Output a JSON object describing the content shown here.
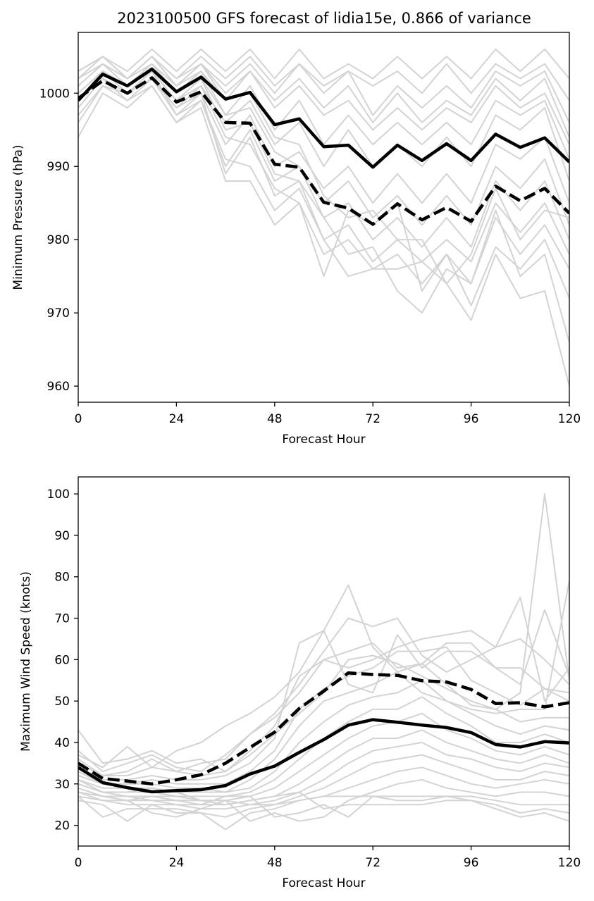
{
  "colors": {
    "member": "#d3d3d3",
    "highlight": "#000000",
    "axes": "#000000",
    "background": "#ffffff"
  },
  "chart_data": [
    {
      "type": "line",
      "title": "2023100500 GFS forecast of lidia15e, 0.866 of variance",
      "xlabel": "Forecast Hour",
      "ylabel": "Minimum Pressure (hPa)",
      "xlim": [
        0,
        120
      ],
      "ylim": [
        957.8,
        1008.3
      ],
      "x_ticks": [
        0,
        24,
        48,
        72,
        96,
        120
      ],
      "y_ticks": [
        960,
        970,
        980,
        990,
        1000
      ],
      "x": [
        0,
        6,
        12,
        18,
        24,
        30,
        36,
        42,
        48,
        54,
        60,
        66,
        72,
        78,
        84,
        90,
        96,
        102,
        108,
        114,
        120
      ],
      "grid": false,
      "legend": "none",
      "ensemble_members": [
        [
          1003,
          1005,
          1003,
          1006,
          1003,
          1006,
          1003,
          1006,
          1002,
          1006,
          1002,
          1004,
          1002,
          1005,
          1002,
          1005,
          1002,
          1006,
          1003,
          1006,
          1002
        ],
        [
          1002,
          1005,
          1002,
          1005,
          1002,
          1005,
          1002,
          1005,
          1001,
          1004,
          1001,
          1003,
          1001,
          1003,
          1000,
          1004,
          1000,
          1004,
          1002,
          1004,
          999
        ],
        [
          1001,
          1004,
          1002,
          1005,
          1001,
          1004,
          1001,
          1004,
          1000,
          1004,
          1000,
          1003,
          997,
          1001,
          998,
          1001,
          998,
          1003,
          1001,
          1003,
          996
        ],
        [
          1000,
          1003,
          1001,
          1004,
          1001,
          1004,
          1000,
          1003,
          999,
          1002,
          998,
          1001,
          996,
          1000,
          996,
          999,
          997,
          1002,
          999,
          1002,
          994
        ],
        [
          999,
          1003,
          1001,
          1003,
          1000,
          1003,
          999,
          1003,
          998,
          1001,
          997,
          999,
          995,
          998,
          995,
          998,
          996,
          1001,
          998,
          1000,
          993
        ],
        [
          998,
          1002,
          1000,
          1003,
          999,
          1002,
          997,
          1001,
          995,
          999,
          993,
          997,
          993,
          996,
          993,
          996,
          993,
          999,
          997,
          999,
          991
        ],
        [
          997,
          1001,
          1000,
          1002,
          998,
          1001,
          996,
          999,
          993,
          996,
          990,
          995,
          990,
          993,
          990,
          994,
          990,
          997,
          995,
          998,
          988
        ],
        [
          996,
          1001,
          999,
          1002,
          997,
          1000,
          993,
          997,
          990,
          992,
          987,
          990,
          985,
          989,
          985,
          989,
          985,
          993,
          991,
          994,
          985
        ],
        [
          994,
          1000,
          998,
          1001,
          996,
          999,
          990,
          995,
          988,
          990,
          985,
          988,
          983,
          986,
          982,
          986,
          982,
          990,
          987,
          991,
          982
        ],
        [
          999,
          1002,
          1000,
          1002,
          998,
          1000,
          989,
          994,
          986,
          988,
          983,
          985,
          980,
          983,
          979,
          983,
          979,
          988,
          984,
          988,
          980
        ],
        [
          1000,
          1003,
          1000,
          1003,
          997,
          999,
          991,
          990,
          984,
          987,
          980,
          982,
          977,
          980,
          977,
          980,
          977,
          985,
          981,
          985,
          978
        ],
        [
          998,
          1002,
          999,
          1001,
          996,
          998,
          988,
          988,
          982,
          985,
          978,
          980,
          976,
          978,
          974,
          978,
          974,
          983,
          978,
          982,
          976
        ],
        [
          999,
          1003,
          1001,
          1003,
          999,
          1001,
          994,
          993,
          987,
          985,
          975,
          984,
          982,
          985,
          973,
          978,
          971,
          979,
          976,
          980,
          972
        ],
        [
          1001,
          1004,
          1001,
          1004,
          1000,
          1002,
          995,
          996,
          989,
          988,
          980,
          975,
          976,
          976,
          977,
          974,
          969,
          978,
          972,
          973,
          960
        ],
        [
          1002,
          1004,
          1002,
          1004,
          1001,
          1003,
          997,
          998,
          992,
          990,
          983,
          978,
          979,
          973,
          970,
          976,
          974,
          984,
          975,
          978,
          966
        ],
        [
          1003,
          1005,
          1002,
          1005,
          1002,
          1004,
          999,
          1000,
          994,
          993,
          986,
          983,
          984,
          980,
          980,
          974,
          978,
          987,
          980,
          984,
          983
        ]
      ],
      "highlight_solid": [
        999,
        1002.6,
        1001,
        1003.3,
        1000.2,
        1002.2,
        999.2,
        1000.1,
        995.7,
        996.5,
        992.7,
        992.9,
        989.9,
        992.9,
        990.8,
        993.1,
        990.8,
        994.4,
        992.6,
        993.9,
        990.6
      ],
      "highlight_dashed": [
        999.3,
        1001.7,
        1000,
        1002.1,
        998.8,
        1000.2,
        996,
        995.9,
        990.3,
        989.9,
        985.1,
        984.3,
        982.1,
        984.9,
        982.7,
        984.4,
        982.5,
        987.3,
        985.3,
        987,
        983.6
      ]
    },
    {
      "type": "line",
      "title": "",
      "xlabel": "Forecast Hour",
      "ylabel": "Maximum Wind Speed (knots)",
      "xlim": [
        0,
        120
      ],
      "ylim": [
        15,
        104.1
      ],
      "x_ticks": [
        0,
        24,
        48,
        72,
        96,
        120
      ],
      "y_ticks": [
        20,
        30,
        40,
        50,
        60,
        70,
        80,
        90,
        100
      ],
      "x": [
        0,
        6,
        12,
        18,
        24,
        30,
        36,
        42,
        48,
        54,
        60,
        66,
        72,
        78,
        84,
        90,
        96,
        102,
        108,
        114,
        120
      ],
      "grid": false,
      "legend": "none",
      "ensemble_members": [
        [
          43,
          35,
          36,
          38,
          35,
          36,
          33,
          37,
          42,
          47,
          52,
          60,
          61,
          59,
          56,
          53,
          50,
          48,
          52,
          100,
          55
        ],
        [
          37,
          34,
          39,
          34,
          38,
          40,
          44,
          47,
          51,
          57,
          67,
          78,
          63,
          57,
          52,
          50,
          48,
          47,
          48,
          48,
          79
        ],
        [
          38,
          33,
          35,
          37,
          34,
          33,
          37,
          42,
          47,
          54,
          62,
          70,
          68,
          70,
          61,
          57,
          60,
          63,
          75,
          50,
          58
        ],
        [
          36,
          32,
          33,
          36,
          33,
          35,
          36,
          42,
          46,
          52,
          60,
          62,
          64,
          58,
          59,
          64,
          64,
          58,
          54,
          72,
          56
        ],
        [
          35,
          32,
          32,
          34,
          33,
          32,
          33,
          38,
          44,
          56,
          60,
          58,
          60,
          63,
          65,
          66,
          67,
          63,
          65,
          60,
          54
        ],
        [
          34,
          31,
          31,
          32,
          31,
          31,
          32,
          35,
          41,
          64,
          67,
          54,
          52,
          66,
          58,
          62,
          62,
          58,
          58,
          53,
          52
        ],
        [
          33,
          30,
          30,
          31,
          30,
          30,
          30,
          33,
          38,
          48,
          53,
          56,
          58,
          62,
          62,
          63,
          55,
          52,
          49,
          53,
          50
        ],
        [
          32,
          30,
          30,
          30,
          29,
          29,
          28,
          31,
          36,
          44,
          50,
          52,
          54,
          57,
          59,
          54,
          49,
          48,
          45,
          46,
          46
        ],
        [
          31,
          29,
          29,
          29,
          28,
          28,
          28,
          29,
          33,
          40,
          45,
          49,
          51,
          52,
          55,
          50,
          47,
          44,
          42,
          44,
          43
        ],
        [
          30,
          28,
          28,
          28,
          27,
          27,
          27,
          28,
          31,
          36,
          41,
          45,
          48,
          48,
          51,
          47,
          44,
          40,
          40,
          42,
          40
        ],
        [
          30,
          28,
          27,
          27,
          26,
          26,
          26,
          27,
          29,
          33,
          37,
          41,
          44,
          45,
          47,
          43,
          41,
          38,
          37,
          39,
          37
        ],
        [
          29,
          27,
          26,
          26,
          25,
          25,
          25,
          26,
          27,
          30,
          34,
          38,
          41,
          41,
          43,
          40,
          38,
          36,
          35,
          37,
          35
        ],
        [
          28,
          26,
          25,
          25,
          25,
          24,
          24,
          25,
          26,
          28,
          31,
          35,
          38,
          39,
          40,
          37,
          36,
          34,
          33,
          35,
          34
        ],
        [
          27,
          22,
          24,
          24,
          24,
          23,
          22,
          24,
          25,
          27,
          29,
          32,
          35,
          36,
          37,
          35,
          33,
          31,
          31,
          33,
          32
        ],
        [
          26,
          25,
          21,
          25,
          23,
          23,
          19,
          23,
          24,
          26,
          27,
          29,
          31,
          33,
          34,
          32,
          30,
          29,
          30,
          31,
          30
        ],
        [
          27,
          26,
          26,
          23,
          22,
          24,
          26,
          21,
          23,
          21,
          22,
          26,
          28,
          30,
          31,
          29,
          28,
          27,
          28,
          28,
          27
        ],
        [
          28,
          27,
          27,
          26,
          26,
          25,
          27,
          27,
          22,
          23,
          25,
          22,
          27,
          27,
          27,
          27,
          27,
          26,
          25,
          25,
          25
        ],
        [
          29,
          27,
          26,
          27,
          27,
          26,
          25,
          26,
          27,
          28,
          24,
          25,
          25,
          25,
          25,
          26,
          26,
          25,
          23,
          24,
          23
        ],
        [
          31,
          28,
          28,
          29,
          28,
          26,
          26,
          25,
          25,
          26,
          27,
          27,
          27,
          26,
          26,
          27,
          26,
          24,
          22,
          23,
          21
        ]
      ],
      "highlight_solid": [
        34,
        30.3,
        29.1,
        28.1,
        28.4,
        28.6,
        29.6,
        32.4,
        34.3,
        37.6,
        40.7,
        44.2,
        45.5,
        44.9,
        44.2,
        43.6,
        42.4,
        39.5,
        38.9,
        40.2,
        39.9
      ],
      "highlight_dashed": [
        35,
        31.3,
        30.7,
        30,
        31,
        32.2,
        35,
        38.8,
        42.5,
        48.2,
        52.4,
        56.8,
        56.4,
        56.2,
        54.9,
        54.6,
        52.8,
        49.4,
        49.6,
        48.6,
        49.6
      ]
    }
  ]
}
